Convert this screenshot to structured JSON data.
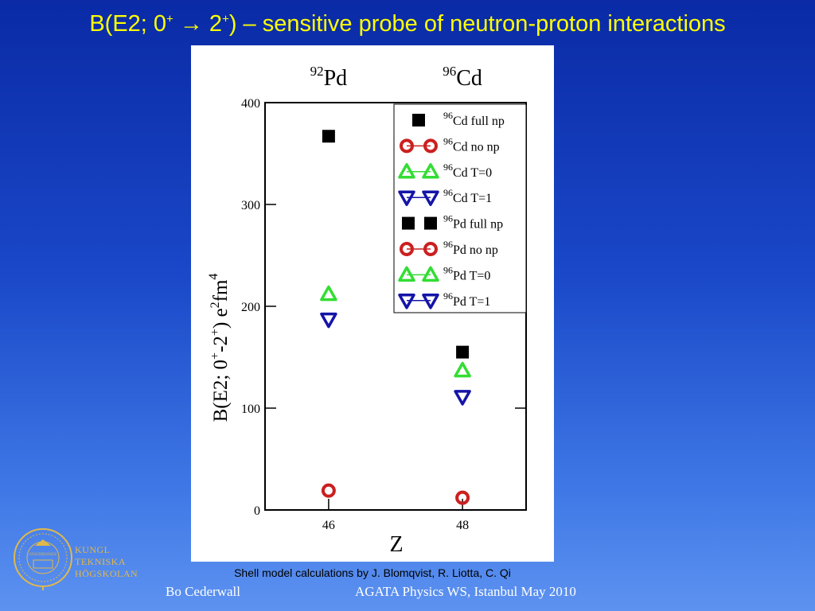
{
  "slide": {
    "title_prefix": "B(E2; 0",
    "title_sup1": "+",
    "title_arrow": "→",
    "title_mid": "2",
    "title_sup2": "+",
    "title_suffix": ") – sensitive probe of neutron-proton interactions",
    "caption": "Shell model calculations by J. Blomqvist, R. Liotta, C. Qi",
    "footer_left": "Bo Cederwall",
    "footer_right": "AGATA Physics WS, Istanbul May 2010",
    "logo_lines": [
      "KUNGL",
      "TEKNISKA",
      "HÖGSKOLAN"
    ],
    "logo_seal_text": "KUNGLIGA TEKNISKA HÖGSKOLAN"
  },
  "chart_data": {
    "type": "scatter",
    "top_labels": [
      {
        "mass": "92",
        "element": "Pd",
        "x": 46
      },
      {
        "mass": "96",
        "element": "Cd",
        "x": 48
      }
    ],
    "xlabel": "Z",
    "ylabel": "B(E2; 0⁺-2⁺) e²fm⁴",
    "ylabel_parts": {
      "base": "B(E2; 0",
      "sup1": "+",
      "mid": "-2",
      "sup2": "+",
      "mid2": ") e",
      "sup3": "2",
      "tail": "fm",
      "sup4": "4"
    },
    "x_ticks": [
      46,
      48
    ],
    "y_ticks": [
      0,
      100,
      200,
      300,
      400
    ],
    "xlim": [
      45.05,
      48.95
    ],
    "ylim": [
      0,
      400
    ],
    "grid": false,
    "legend_position": "top-right",
    "legend_entries": [
      {
        "mass": "96",
        "label": "Cd full np",
        "marker": "square",
        "color": "#000000",
        "line": false
      },
      {
        "mass": "96",
        "label": "Cd no np",
        "marker": "circle",
        "color": "#cc1f1f",
        "line": true
      },
      {
        "mass": "96",
        "label": "Cd T=0",
        "marker": "triangle-up",
        "color": "#33dd33",
        "line": true
      },
      {
        "mass": "96",
        "label": "Cd T=1",
        "marker": "triangle-down",
        "color": "#1414a8",
        "line": true
      },
      {
        "mass": "96",
        "label": "Pd full np",
        "marker": "square",
        "color": "#000000",
        "line": false
      },
      {
        "mass": "96",
        "label": "Pd no np",
        "marker": "circle",
        "color": "#cc1f1f",
        "line": true
      },
      {
        "mass": "96",
        "label": "Pd T=0",
        "marker": "triangle-up",
        "color": "#33dd33",
        "line": true
      },
      {
        "mass": "96",
        "label": "Pd T=1",
        "marker": "triangle-down",
        "color": "#1414a8",
        "line": true
      }
    ],
    "series": [
      {
        "name": "full np",
        "marker": "square",
        "color": "#000000",
        "points": [
          {
            "x": 46,
            "y": 367
          },
          {
            "x": 48,
            "y": 155
          }
        ]
      },
      {
        "name": "no np",
        "marker": "circle",
        "color": "#cc1f1f",
        "points": [
          {
            "x": 46,
            "y": 19
          },
          {
            "x": 48,
            "y": 12
          }
        ]
      },
      {
        "name": "T=0",
        "marker": "triangle-up",
        "color": "#33dd33",
        "points": [
          {
            "x": 46,
            "y": 212
          },
          {
            "x": 48,
            "y": 137
          }
        ]
      },
      {
        "name": "T=1",
        "marker": "triangle-down",
        "color": "#1414a8",
        "points": [
          {
            "x": 46,
            "y": 187
          },
          {
            "x": 48,
            "y": 111
          }
        ]
      }
    ]
  }
}
